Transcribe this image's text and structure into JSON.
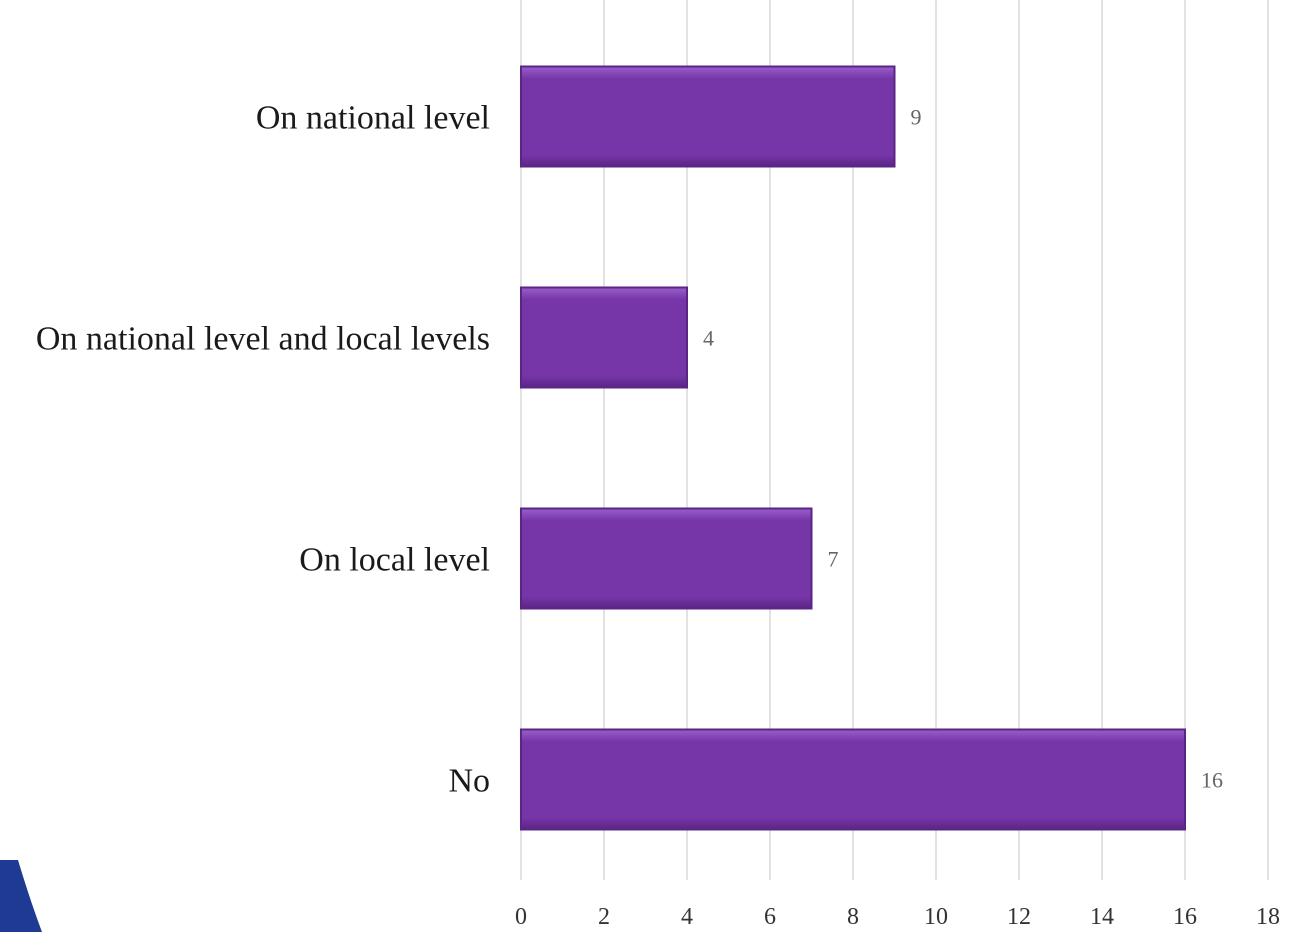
{
  "chart_data": {
    "type": "bar",
    "orientation": "horizontal",
    "categories": [
      "On national level",
      "On national level and local levels",
      "On local level",
      "No"
    ],
    "values": [
      9,
      4,
      7,
      16
    ],
    "xlim": [
      0,
      18
    ],
    "xticks": [
      "0",
      "2",
      "4",
      "6",
      "8",
      "10",
      "12",
      "14",
      "16",
      "18"
    ],
    "grid": true,
    "data_labels": true,
    "bar_color": "#7636a8",
    "bar_edge_color": "#5a2585",
    "bar_highlight_color": "#9a5fcb",
    "data_label_color": "#666666",
    "gridline_color": "#d9d9d9"
  },
  "decorations": {
    "corner_shape_color": "#1f3a93"
  }
}
